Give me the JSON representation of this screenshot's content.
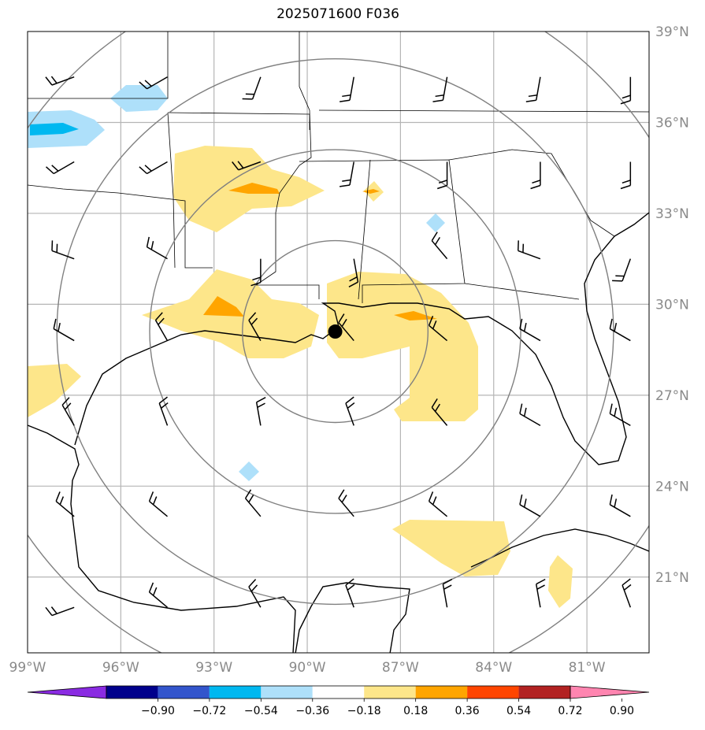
{
  "title": "2025071600 F036",
  "map": {
    "lon_range": [
      -99,
      -79
    ],
    "lat_range": [
      18.5,
      39
    ],
    "lat_ticks": [
      {
        "value": 39,
        "label": "39°N"
      },
      {
        "value": 36,
        "label": "36°N"
      },
      {
        "value": 33,
        "label": "33°N"
      },
      {
        "value": 30,
        "label": "30°N"
      },
      {
        "value": 27,
        "label": "27°N"
      },
      {
        "value": 24,
        "label": "24°N"
      },
      {
        "value": 21,
        "label": "21°N"
      }
    ],
    "lon_ticks": [
      {
        "value": -99,
        "label": "99°W"
      },
      {
        "value": -96,
        "label": "96°W"
      },
      {
        "value": -93,
        "label": "93°W"
      },
      {
        "value": -90,
        "label": "90°W"
      },
      {
        "value": -87,
        "label": "87°W"
      },
      {
        "value": -84,
        "label": "84°W"
      },
      {
        "value": -81,
        "label": "81°W"
      }
    ],
    "storm_center": {
      "lon": -89.1,
      "lat": 29.1
    },
    "range_ring_spacing_deg": 3
  },
  "colorbar": {
    "labels": [
      "−0.90",
      "−0.72",
      "−0.54",
      "−0.36",
      "−0.18",
      "0.18",
      "0.36",
      "0.54",
      "0.72",
      "0.90"
    ],
    "colors": [
      "#8a2be2",
      "#00008b",
      "#3355cc",
      "#00b8f0",
      "#aee0fa",
      "#ffffff",
      "#fde68a",
      "#ffa500",
      "#ff4500",
      "#b22222",
      "#ff85b0"
    ]
  }
}
